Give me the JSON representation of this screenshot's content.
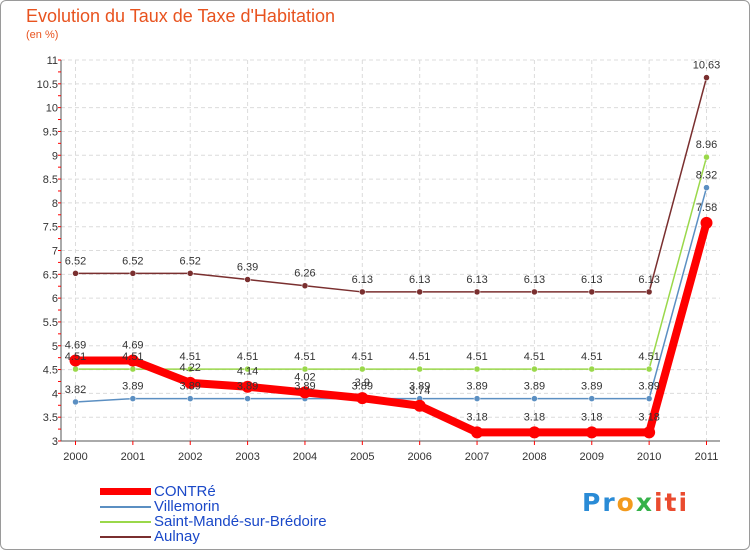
{
  "chart_data": {
    "type": "line",
    "title": "Evolution du Taux de Taxe d'Habitation",
    "subtitle": "(en %)",
    "categories": [
      "2000",
      "2001",
      "2002",
      "2003",
      "2004",
      "2005",
      "2006",
      "2007",
      "2008",
      "2009",
      "2010",
      "2011"
    ],
    "ylim": [
      3,
      11
    ],
    "yticks": [
      "3",
      "3.5",
      "4",
      "4.5",
      "5",
      "5.5",
      "6",
      "6.5",
      "7",
      "7.5",
      "8",
      "8.5",
      "9",
      "9.5",
      "10",
      "10.5",
      "11"
    ],
    "series": [
      {
        "name": "CONTRé",
        "color": "#ff0000",
        "values": [
          4.69,
          4.69,
          4.22,
          4.14,
          4.02,
          3.9,
          3.74,
          3.18,
          3.18,
          3.18,
          3.18,
          7.58
        ],
        "labels": [
          "4.69",
          "4.69",
          "4.22",
          "4.14",
          "4.02",
          "3.9",
          "3.74",
          "3.18",
          "3.18",
          "3.18",
          "3.18",
          "7.58"
        ]
      },
      {
        "name": "Villemorin",
        "color": "#5b8fc2",
        "values": [
          3.82,
          3.89,
          3.89,
          3.89,
          3.89,
          3.89,
          3.89,
          3.89,
          3.89,
          3.89,
          3.89,
          8.32
        ],
        "labels": [
          "3.82",
          "3.89",
          "3.89",
          "3.89",
          "3.89",
          "3.89",
          "3.89",
          "3.89",
          "3.89",
          "3.89",
          "3.89",
          "8.32"
        ]
      },
      {
        "name": "Saint-Mandé-sur-Brédoire",
        "color": "#9ad84a",
        "values": [
          4.51,
          4.51,
          4.51,
          4.51,
          4.51,
          4.51,
          4.51,
          4.51,
          4.51,
          4.51,
          4.51,
          8.96
        ],
        "labels": [
          "4.51",
          "4.51",
          "4.51",
          "4.51",
          "4.51",
          "4.51",
          "4.51",
          "4.51",
          "4.51",
          "4.51",
          "4.51",
          "8.96"
        ]
      },
      {
        "name": "Aulnay",
        "color": "#7a2f2f",
        "values": [
          6.52,
          6.52,
          6.52,
          6.39,
          6.26,
          6.13,
          6.13,
          6.13,
          6.13,
          6.13,
          6.13,
          10.63
        ],
        "labels": [
          "6.52",
          "6.52",
          "6.52",
          "6.39",
          "6.26",
          "6.13",
          "6.13",
          "6.13",
          "6.13",
          "6.13",
          "6.13",
          "10.63"
        ]
      }
    ],
    "grid": true,
    "legend": "bottom-left"
  },
  "logo": {
    "p1": "Pr",
    "p2": "o",
    "p3": "x",
    "p4": "iti"
  }
}
